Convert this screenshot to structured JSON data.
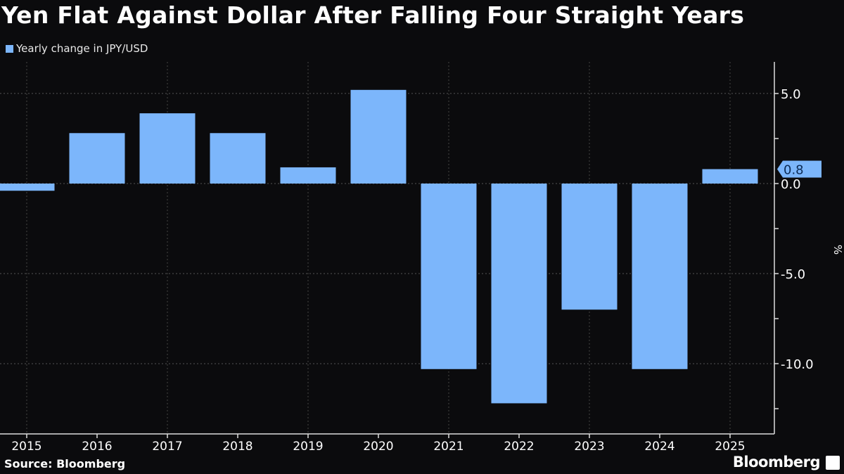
{
  "chart_data": {
    "type": "bar",
    "title": "Yen Flat Against Dollar After Falling Four Straight Years",
    "legend": [
      "Yearly change in JPY/USD"
    ],
    "legend_placement": "top-left",
    "categories": [
      "2015",
      "2016",
      "2017",
      "2018",
      "2019",
      "2020",
      "2021",
      "2022",
      "2023",
      "2024",
      "2025"
    ],
    "series": [
      {
        "name": "Yearly change in JPY/USD",
        "values": [
          -0.4,
          2.8,
          3.9,
          2.8,
          0.9,
          5.2,
          -10.3,
          -12.2,
          -7.0,
          -10.3,
          0.8
        ]
      }
    ],
    "ylabel": "%",
    "y_axis_position": "right",
    "yticks": [
      5.0,
      0.0,
      -5.0,
      -10.0
    ],
    "ytick_labels": [
      "5.0",
      "0.0",
      "-5.0",
      "-10.0"
    ],
    "ylim": [
      -13.9,
      5.7
    ],
    "grid": true,
    "last_value_label": "0.8",
    "bar_color": "#7cb6fb",
    "source": "Source: Bloomberg",
    "brand": "Bloomberg"
  }
}
